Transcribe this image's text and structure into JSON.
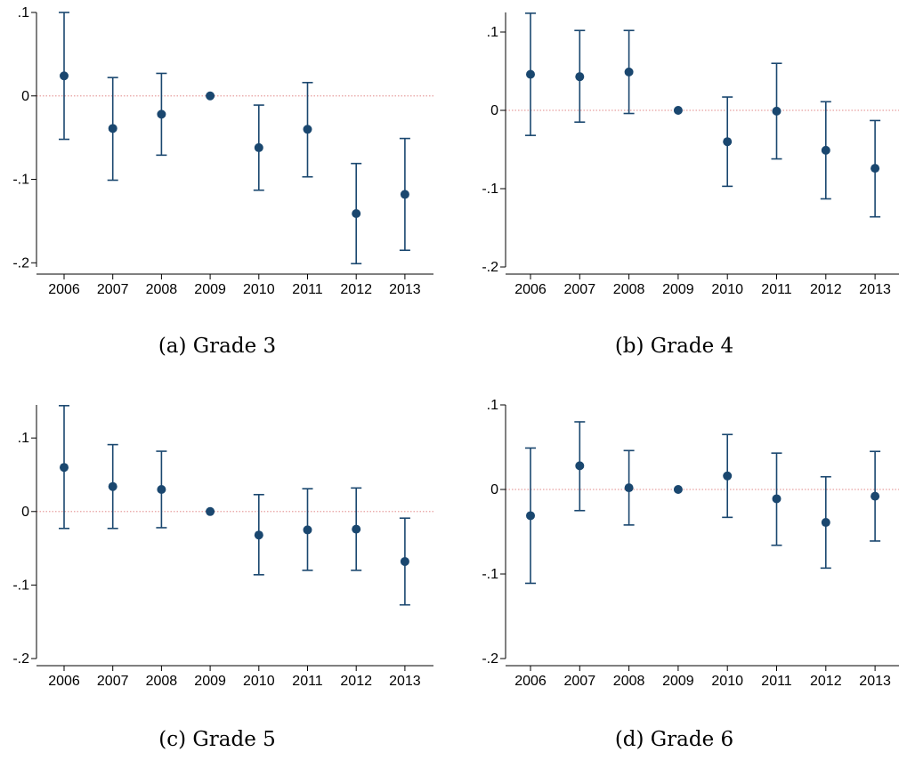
{
  "chart_data": [
    {
      "type": "scatter",
      "caption": "(a) Grade 3",
      "x": [
        "2006",
        "2007",
        "2008",
        "2009",
        "2010",
        "2011",
        "2012",
        "2013"
      ],
      "yticks": [
        ".1",
        "0",
        "-.1",
        "-.2"
      ],
      "ytick_values": [
        0.1,
        0,
        -0.1,
        -0.2
      ],
      "ylim": [
        -0.205,
        0.1
      ],
      "series": [
        {
          "values": [
            0.024,
            -0.039,
            -0.022,
            0.0,
            -0.062,
            -0.04,
            -0.141,
            -0.118
          ],
          "ci_low": [
            -0.052,
            -0.101,
            -0.071,
            0.0,
            -0.113,
            -0.097,
            -0.201,
            -0.185
          ],
          "ci_high": [
            0.1,
            0.022,
            0.027,
            0.0,
            -0.011,
            0.016,
            -0.081,
            -0.051
          ]
        }
      ],
      "reference_line": 0
    },
    {
      "type": "scatter",
      "caption": "(b) Grade 4",
      "x": [
        "2006",
        "2007",
        "2008",
        "2009",
        "2010",
        "2011",
        "2012",
        "2013"
      ],
      "yticks": [
        ".1",
        "0",
        "-.1",
        "-.2"
      ],
      "ytick_values": [
        0.1,
        0,
        -0.1,
        -0.2
      ],
      "ylim": [
        -0.2,
        0.125
      ],
      "series": [
        {
          "values": [
            0.046,
            0.043,
            0.049,
            0.0,
            -0.04,
            -0.001,
            -0.051,
            -0.074
          ],
          "ci_low": [
            -0.032,
            -0.015,
            -0.004,
            0.0,
            -0.097,
            -0.062,
            -0.113,
            -0.136
          ],
          "ci_high": [
            0.124,
            0.102,
            0.102,
            0.0,
            0.017,
            0.06,
            0.011,
            -0.013
          ]
        }
      ],
      "reference_line": 0
    },
    {
      "type": "scatter",
      "caption": "(c) Grade 5",
      "x": [
        "2006",
        "2007",
        "2008",
        "2009",
        "2010",
        "2011",
        "2012",
        "2013"
      ],
      "yticks": [
        ".1",
        "0",
        "-.1",
        "-.2"
      ],
      "ytick_values": [
        0.1,
        0,
        -0.1,
        -0.2
      ],
      "ylim": [
        -0.2,
        0.145
      ],
      "series": [
        {
          "values": [
            0.06,
            0.034,
            0.03,
            0.0,
            -0.032,
            -0.025,
            -0.024,
            -0.068
          ],
          "ci_low": [
            -0.023,
            -0.023,
            -0.022,
            0.0,
            -0.086,
            -0.08,
            -0.08,
            -0.127
          ],
          "ci_high": [
            0.144,
            0.091,
            0.082,
            0.0,
            0.023,
            0.031,
            0.032,
            -0.009
          ]
        }
      ],
      "reference_line": 0
    },
    {
      "type": "scatter",
      "caption": "(d) Grade 6",
      "x": [
        "2006",
        "2007",
        "2008",
        "2009",
        "2010",
        "2011",
        "2012",
        "2013"
      ],
      "yticks": [
        ".1",
        "0",
        "-.1",
        "-.2"
      ],
      "ytick_values": [
        0.1,
        0,
        -0.1,
        -0.2
      ],
      "ylim": [
        -0.2,
        0.1
      ],
      "series": [
        {
          "values": [
            -0.031,
            0.028,
            0.002,
            0.0,
            0.016,
            -0.011,
            -0.039,
            -0.008
          ],
          "ci_low": [
            -0.111,
            -0.025,
            -0.042,
            0.0,
            -0.033,
            -0.066,
            -0.093,
            -0.061
          ],
          "ci_high": [
            0.049,
            0.08,
            0.046,
            0.0,
            0.065,
            0.043,
            0.015,
            0.045
          ]
        }
      ],
      "reference_line": 0
    }
  ],
  "style": {
    "marker_color": "#1a476f",
    "reference_line_color": "#e8a0a0",
    "axis_color": "#000000"
  }
}
